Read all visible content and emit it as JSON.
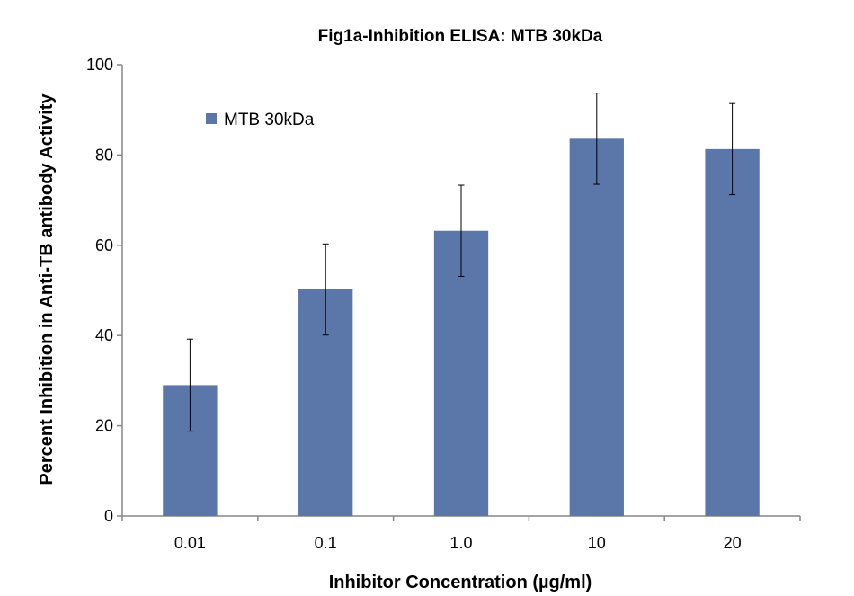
{
  "chart_data": {
    "type": "bar",
    "title": "Fig1a-Inhibition ELISA: MTB 30kDa",
    "xlabel": "Inhibitor Concentration (µg/ml)",
    "ylabel": "Percent Inhibition in Anti-TB antibody Activity",
    "categories": [
      "0.01",
      "0.1",
      "1.0",
      "10",
      "20"
    ],
    "series": [
      {
        "name": "MTB 30kDa",
        "values": [
          29,
          50.2,
          63.2,
          83.6,
          81.3
        ],
        "error": [
          10.2,
          10.1,
          10.1,
          10.1,
          10.1
        ],
        "color": "#5B76A8"
      }
    ],
    "ylim": [
      0,
      100
    ],
    "yticks": [
      0,
      20,
      40,
      60,
      80,
      100
    ],
    "grid": false,
    "legend": "top-left"
  }
}
